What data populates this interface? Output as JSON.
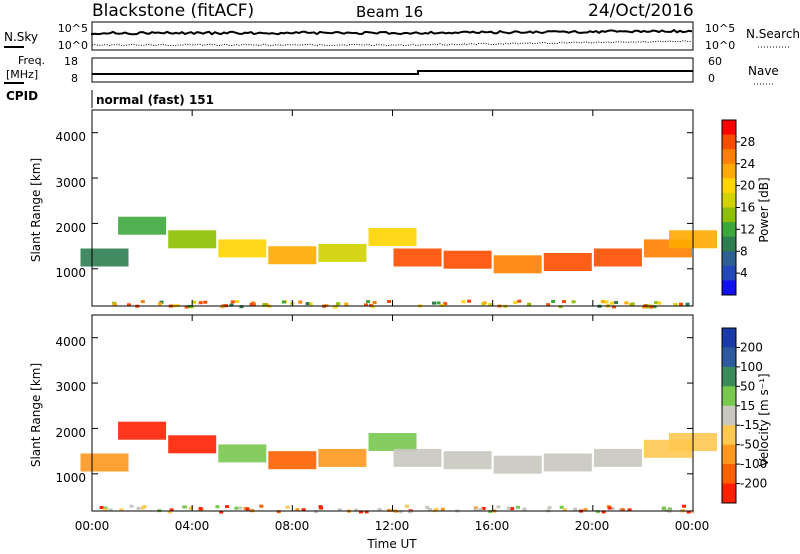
{
  "header": {
    "title": "Blackstone (fitACF)",
    "beam": "Beam 16",
    "date": "24/Oct/2016"
  },
  "status_panels": {
    "nsky_label": "N.Sky",
    "nsearch_label": "N.Search",
    "freq_label_1": "Freq.",
    "freq_label_2": "[MHz]",
    "nave_label": "Nave",
    "cpid_label": "CPID",
    "cpid_value": "normal (fast) 151",
    "noise_left_ticks": [
      "10^5",
      "10^0"
    ],
    "noise_right_ticks": [
      "10^5",
      "10^0"
    ],
    "freq_ticks": [
      "18",
      "8"
    ],
    "nave_ticks": [
      "60",
      "0"
    ]
  },
  "colorbars": {
    "power": {
      "label": "Power [dB]",
      "ticks": [
        "28",
        "24",
        "20",
        "16",
        "12",
        "8",
        "4"
      ],
      "colors": [
        "#ff0000",
        "#ff4d00",
        "#ff8000",
        "#ffaa00",
        "#ffd500",
        "#d2d200",
        "#8cc000",
        "#3ca83c",
        "#2e7d50",
        "#2d6090",
        "#2448b8",
        "#1010f0"
      ]
    },
    "velocity": {
      "label": "Velocity [m s⁻¹]",
      "ticks": [
        "200",
        "100",
        "50",
        "15",
        "-15",
        "-50",
        "-100",
        "-200"
      ],
      "colors": [
        "#1a3aa8",
        "#2d5a9c",
        "#3a8a5a",
        "#78c850",
        "#c8c8c0",
        "#ffc850",
        "#ff9820",
        "#ff6000",
        "#ff2000"
      ]
    }
  },
  "chart_data": [
    {
      "type": "heatmap",
      "panel": "power",
      "ylabel": "Slant Range [km]",
      "xlabel": "Time UT",
      "yticks": [
        "4000",
        "3000",
        "2000",
        "1000"
      ],
      "xticks": [
        "00:00",
        "04:00",
        "08:00",
        "12:00",
        "16:00",
        "20:00",
        "00:00"
      ],
      "ylim": [
        180,
        4500
      ],
      "xlim": [
        0,
        24
      ],
      "scale_min": 0,
      "scale_max": 32,
      "echo_band": [
        {
          "t": 0.5,
          "range": 1250,
          "value": 8
        },
        {
          "t": 2.0,
          "range": 1950,
          "value": 12
        },
        {
          "t": 4.0,
          "range": 1650,
          "value": 16
        },
        {
          "t": 6.0,
          "range": 1450,
          "value": 20
        },
        {
          "t": 8.0,
          "range": 1300,
          "value": 22
        },
        {
          "t": 10.0,
          "range": 1350,
          "value": 18
        },
        {
          "t": 12.0,
          "range": 1700,
          "value": 20
        },
        {
          "t": 13.0,
          "range": 1250,
          "value": 28
        },
        {
          "t": 15.0,
          "range": 1200,
          "value": 28
        },
        {
          "t": 17.0,
          "range": 1100,
          "value": 26
        },
        {
          "t": 19.0,
          "range": 1150,
          "value": 28
        },
        {
          "t": 21.0,
          "range": 1250,
          "value": 28
        },
        {
          "t": 23.0,
          "range": 1450,
          "value": 26
        },
        {
          "t": 24.0,
          "range": 1650,
          "value": 22
        }
      ]
    },
    {
      "type": "heatmap",
      "panel": "velocity",
      "ylabel": "Slant Range [km]",
      "xlabel": "Time UT",
      "yticks": [
        "4000",
        "3000",
        "2000",
        "1000"
      ],
      "xticks": [
        "00:00",
        "04:00",
        "08:00",
        "12:00",
        "16:00",
        "20:00",
        "00:00"
      ],
      "ylim": [
        180,
        4500
      ],
      "xlim": [
        0,
        24
      ],
      "echo_band": [
        {
          "t": 0.5,
          "range": 1250,
          "value": -60
        },
        {
          "t": 2.0,
          "range": 1950,
          "value": -220
        },
        {
          "t": 4.0,
          "range": 1650,
          "value": -220
        },
        {
          "t": 6.0,
          "range": 1450,
          "value": 20
        },
        {
          "t": 8.0,
          "range": 1300,
          "value": -150
        },
        {
          "t": 10.0,
          "range": 1350,
          "value": -80
        },
        {
          "t": 12.0,
          "range": 1700,
          "value": 30
        },
        {
          "t": 13.0,
          "range": 1350,
          "value": 0
        },
        {
          "t": 15.0,
          "range": 1300,
          "value": 0
        },
        {
          "t": 17.0,
          "range": 1200,
          "value": 0
        },
        {
          "t": 19.0,
          "range": 1250,
          "value": 0
        },
        {
          "t": 21.0,
          "range": 1350,
          "value": 0
        },
        {
          "t": 23.0,
          "range": 1550,
          "value": -20
        },
        {
          "t": 24.0,
          "range": 1700,
          "value": -40
        }
      ]
    }
  ]
}
